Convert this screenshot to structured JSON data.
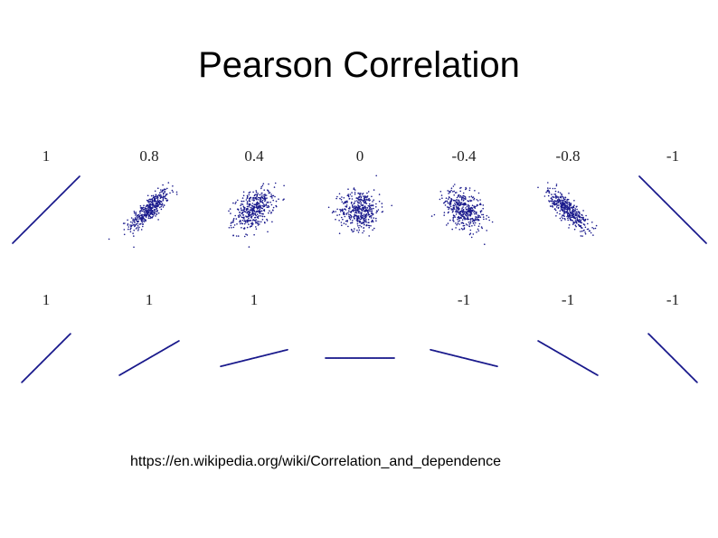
{
  "slide": {
    "title": "Pearson Correlation",
    "source_url": "https://en.wikipedia.org/wiki/Correlation_and_dependence"
  },
  "colors": {
    "points": "#1a1a8c",
    "text": "#000000"
  },
  "chart_data": [
    {
      "type": "scatter",
      "description_row": "scatter clouds with varying correlation",
      "panels": [
        {
          "label": "1",
          "correlation": 1.0
        },
        {
          "label": "0.8",
          "correlation": 0.8
        },
        {
          "label": "0.4",
          "correlation": 0.4
        },
        {
          "label": "0",
          "correlation": 0.0
        },
        {
          "label": "-0.4",
          "correlation": -0.4
        },
        {
          "label": "-0.8",
          "correlation": -0.8
        },
        {
          "label": "-1",
          "correlation": -1.0
        }
      ]
    },
    {
      "type": "scatter",
      "description_row": "perfect linear relations with varying slope",
      "panels": [
        {
          "label": "1",
          "correlation": 1,
          "slope_deg": 45
        },
        {
          "label": "1",
          "correlation": 1,
          "slope_deg": 30
        },
        {
          "label": "1",
          "correlation": 1,
          "slope_deg": 14
        },
        {
          "label": "",
          "correlation": null,
          "slope_deg": 0
        },
        {
          "label": "-1",
          "correlation": -1,
          "slope_deg": -14
        },
        {
          "label": "-1",
          "correlation": -1,
          "slope_deg": -30
        },
        {
          "label": "-1",
          "correlation": -1,
          "slope_deg": -45
        }
      ]
    }
  ]
}
